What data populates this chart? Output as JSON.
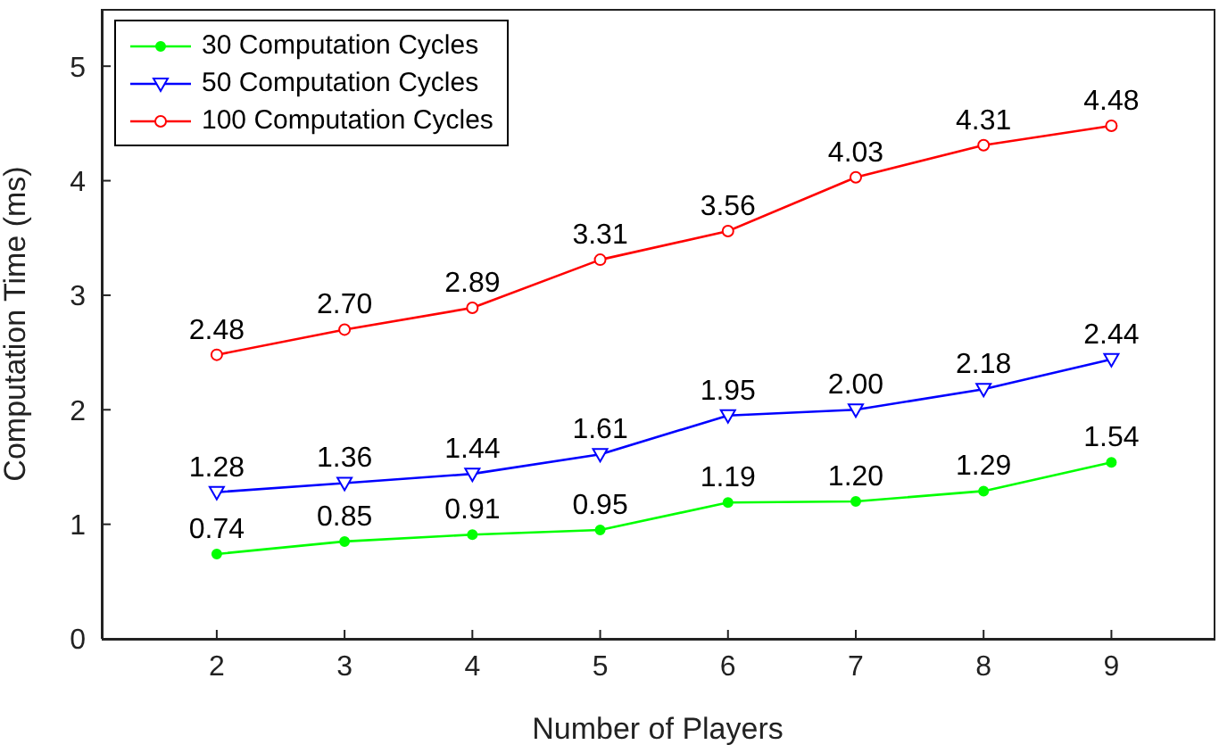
{
  "chart_data": {
    "type": "line",
    "xlabel": "Number of Players",
    "ylabel": "Computation Time (ms)",
    "x": [
      2,
      3,
      4,
      5,
      6,
      7,
      8,
      9
    ],
    "xlim": [
      1.1,
      9.8
    ],
    "xticks": [
      2,
      3,
      4,
      5,
      6,
      7,
      8,
      9
    ],
    "ylim": [
      0,
      5.5
    ],
    "yticks": [
      0,
      1,
      2,
      3,
      4,
      5
    ],
    "grid": false,
    "legend": "top left",
    "series": [
      {
        "name": "30 Computation Cycles",
        "color": "#00ff00",
        "marker": "circle",
        "values": [
          0.74,
          0.85,
          0.91,
          0.95,
          1.19,
          1.2,
          1.29,
          1.54
        ],
        "value_labels": [
          "0.74",
          "0.85",
          "0.91",
          "0.95",
          "1.19",
          "1.20",
          "1.29",
          "1.54"
        ]
      },
      {
        "name": "50 Computation Cycles",
        "color": "#0000ff",
        "marker": "triangle",
        "values": [
          1.28,
          1.36,
          1.44,
          1.61,
          1.95,
          2.0,
          2.18,
          2.44
        ],
        "value_labels": [
          "1.28",
          "1.36",
          "1.44",
          "1.61",
          "1.95",
          "2.00",
          "2.18",
          "2.44"
        ]
      },
      {
        "name": "100 Computation Cycles",
        "color": "#ff0000",
        "marker": "circle",
        "values": [
          2.48,
          2.7,
          2.89,
          3.31,
          3.56,
          4.03,
          4.31,
          4.48
        ],
        "value_labels": [
          "2.48",
          "2.70",
          "2.89",
          "3.31",
          "3.56",
          "4.03",
          "4.31",
          "4.48"
        ]
      }
    ]
  }
}
